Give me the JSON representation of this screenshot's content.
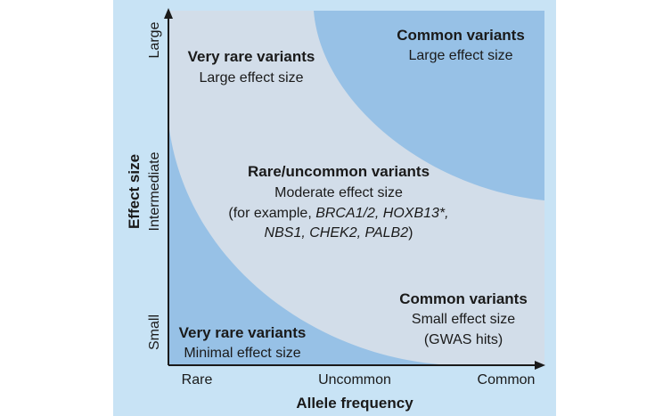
{
  "colors": {
    "panel_background": "#c8e3f5",
    "middle_region": "#d2dde9",
    "dark_region": "#97c1e6",
    "axis": "#1a1a1a"
  },
  "y_axis": {
    "title": "Effect size",
    "ticks": [
      "Large",
      "Intermediate",
      "Small"
    ]
  },
  "x_axis": {
    "title": "Allele frequency",
    "ticks": [
      "Rare",
      "Uncommon",
      "Common"
    ]
  },
  "regions": {
    "top_left": {
      "heading": "Very rare variants",
      "subheading": "Large effect size"
    },
    "top_right": {
      "heading": "Common variants",
      "subheading": "Large effect size"
    },
    "center": {
      "heading": "Rare/uncommon variants",
      "subheading": "Moderate effect size",
      "example_prefix": "(for example, ",
      "genes_line1": "BRCA1/2, HOXB13*,",
      "genes_line2": "NBS1, CHEK2, PALB2",
      "example_suffix": ")"
    },
    "bottom_right": {
      "heading": "Common variants",
      "subheading": "Small effect size",
      "note": "(GWAS hits)"
    },
    "bottom_left": {
      "heading": "Very rare variants",
      "subheading": "Minimal effect size"
    }
  }
}
